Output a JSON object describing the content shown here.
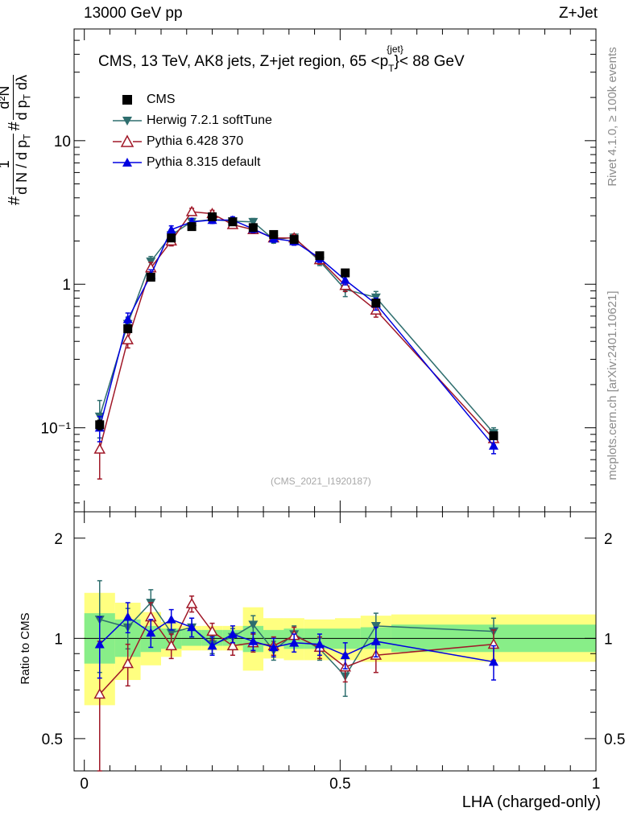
{
  "header": {
    "left": "13000 GeV pp",
    "right": "Z+Jet"
  },
  "panel_title": "CMS, 13 TeV, AK8 jets, Z+jet region, 65 <p",
  "panel_title_sub": "T",
  "panel_title_sup": "{jet}",
  "panel_title_end": "}< 88 GeV",
  "y_axis_label": {
    "frac1_num": "1",
    "frac1_den": "d N / d p",
    "frac1_den_sub": "T",
    "frac2_num": "d²N",
    "frac2_den": "d p",
    "frac2_den_sub": "T",
    "frac2_den_end": "dλ",
    "hash": "#"
  },
  "ratio_y_label": "Ratio to CMS",
  "x_label": "LHA (charged-only)",
  "watermark": "(CMS_2021_I1920187)",
  "side_rivet": "Rivet 4.1.0, ≥ 100k events",
  "side_site": "mcplots.cern.ch [arXiv:2401.10621]",
  "legend": [
    {
      "label": "CMS",
      "marker": "square",
      "color": "#000000"
    },
    {
      "label": "Herwig 7.2.1 softTune",
      "marker": "triangle-down",
      "color": "#2e6e6e"
    },
    {
      "label": "Pythia 6.428 370",
      "marker": "triangle-up-open",
      "color": "#a01828"
    },
    {
      "label": "Pythia 8.315 default",
      "marker": "triangle-up",
      "color": "#0000e0"
    }
  ],
  "chart_data": {
    "type": "line",
    "x": [
      0.03,
      0.085,
      0.13,
      0.17,
      0.21,
      0.25,
      0.29,
      0.33,
      0.37,
      0.41,
      0.46,
      0.51,
      0.57,
      0.8
    ],
    "xlim": [
      -0.02,
      1.0
    ],
    "xticks": [
      0,
      0.5,
      1
    ],
    "xtick_labels": [
      "0",
      "0.5",
      "1"
    ],
    "main": {
      "ylim": [
        0.026,
        60
      ],
      "yscale": "log",
      "ytick_labels": [
        "10⁻¹",
        "1",
        "10"
      ],
      "series": [
        {
          "name": "CMS",
          "color": "#000000",
          "marker": "square",
          "line": false,
          "values": [
            0.105,
            0.49,
            1.12,
            2.1,
            2.52,
            2.95,
            2.72,
            2.48,
            2.22,
            2.05,
            1.58,
            1.2,
            0.74,
            0.088
          ],
          "err": [
            0.008,
            0.03,
            0.06,
            0.1,
            0.1,
            0.1,
            0.1,
            0.1,
            0.08,
            0.08,
            0.06,
            0.05,
            0.04,
            0.005
          ]
        },
        {
          "name": "Herwig 7.2.1 softTune",
          "color": "#2e6e6e",
          "marker": "triangle-down",
          "line": true,
          "values": [
            0.12,
            0.53,
            1.44,
            2.2,
            2.73,
            2.82,
            2.75,
            2.72,
            2.05,
            2.12,
            1.45,
            0.92,
            0.81,
            0.092
          ],
          "err": [
            0.035,
            0.06,
            0.12,
            0.15,
            0.15,
            0.15,
            0.15,
            0.15,
            0.12,
            0.12,
            0.1,
            0.1,
            0.08,
            0.008
          ]
        },
        {
          "name": "Pythia 6.428 370",
          "color": "#a01828",
          "marker": "triangle-up-open",
          "line": true,
          "values": [
            0.071,
            0.41,
            1.3,
            2.0,
            3.2,
            3.1,
            2.6,
            2.4,
            2.1,
            2.1,
            1.48,
            0.98,
            0.66,
            0.084
          ],
          "err": [
            0.027,
            0.05,
            0.12,
            0.15,
            0.18,
            0.17,
            0.15,
            0.14,
            0.12,
            0.12,
            0.1,
            0.09,
            0.07,
            0.008
          ]
        },
        {
          "name": "Pythia 8.315 default",
          "color": "#0000e0",
          "marker": "triangle-up",
          "line": true,
          "values": [
            0.1,
            0.57,
            1.16,
            2.4,
            2.72,
            2.8,
            2.8,
            2.43,
            2.08,
            1.99,
            1.52,
            1.07,
            0.73,
            0.075
          ],
          "err": [
            0.02,
            0.06,
            0.1,
            0.15,
            0.15,
            0.15,
            0.15,
            0.14,
            0.12,
            0.12,
            0.1,
            0.08,
            0.07,
            0.009
          ]
        }
      ]
    },
    "ratio": {
      "ylim": [
        0.4,
        2.4
      ],
      "yscale": "log",
      "yticks": [
        0.5,
        1,
        2
      ],
      "ytick_labels": [
        "0.5",
        "1",
        "2"
      ],
      "band_bins": [
        0.0,
        0.06,
        0.11,
        0.15,
        0.19,
        0.23,
        0.27,
        0.31,
        0.35,
        0.39,
        0.43,
        0.49,
        0.54,
        0.6,
        1.0
      ],
      "band_inner_lo": [
        0.84,
        0.88,
        0.91,
        0.93,
        0.95,
        0.95,
        0.95,
        0.91,
        0.95,
        0.93,
        0.93,
        0.93,
        0.93,
        0.91
      ],
      "band_inner_hi": [
        1.19,
        1.14,
        1.09,
        1.07,
        1.06,
        1.06,
        1.06,
        1.09,
        1.06,
        1.07,
        1.07,
        1.07,
        1.08,
        1.1
      ],
      "band_outer_lo": [
        0.63,
        0.75,
        0.83,
        0.88,
        0.92,
        0.92,
        0.92,
        0.8,
        0.87,
        0.86,
        0.86,
        0.86,
        0.85,
        0.85
      ],
      "band_outer_hi": [
        1.37,
        1.28,
        1.2,
        1.12,
        1.09,
        1.09,
        1.09,
        1.24,
        1.15,
        1.15,
        1.14,
        1.15,
        1.17,
        1.18
      ],
      "series": [
        {
          "name": "Herwig 7.2.1 softTune",
          "color": "#2e6e6e",
          "marker": "triangle-down",
          "values": [
            1.14,
            1.08,
            1.28,
            1.04,
            1.08,
            0.96,
            1.01,
            1.1,
            0.92,
            1.03,
            0.93,
            0.77,
            1.09,
            1.05
          ],
          "err": [
            0.35,
            0.15,
            0.12,
            0.08,
            0.07,
            0.06,
            0.06,
            0.07,
            0.06,
            0.06,
            0.07,
            0.1,
            0.1,
            0.1
          ]
        },
        {
          "name": "Pythia 6.428 370",
          "color": "#a01828",
          "marker": "triangle-up-open",
          "values": [
            0.68,
            0.84,
            1.16,
            0.95,
            1.27,
            1.05,
            0.95,
            0.97,
            0.95,
            1.02,
            0.94,
            0.82,
            0.89,
            0.96
          ],
          "err": [
            0.3,
            0.12,
            0.12,
            0.08,
            0.07,
            0.06,
            0.06,
            0.06,
            0.06,
            0.06,
            0.07,
            0.08,
            0.1,
            0.1
          ]
        },
        {
          "name": "Pythia 8.315 default",
          "color": "#0000e0",
          "marker": "triangle-up",
          "values": [
            0.96,
            1.16,
            1.04,
            1.14,
            1.08,
            0.95,
            1.03,
            0.98,
            0.94,
            0.97,
            0.96,
            0.89,
            0.98,
            0.85
          ],
          "err": [
            0.2,
            0.12,
            0.1,
            0.08,
            0.07,
            0.06,
            0.06,
            0.06,
            0.06,
            0.06,
            0.07,
            0.08,
            0.1,
            0.1
          ]
        }
      ]
    }
  }
}
